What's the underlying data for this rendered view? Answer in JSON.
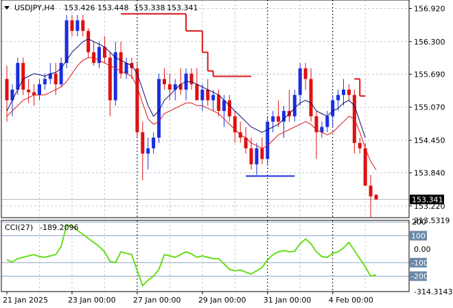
{
  "chart_data": {
    "type": "candlestick",
    "symbol_caption": "USDJPY,H4",
    "ohlc_caption": {
      "open": "153.426",
      "high": "153.448",
      "low": "153.338",
      "close": "153.341"
    },
    "price_ticks": [
      "156.920",
      "156.300",
      "155.690",
      "155.070",
      "154.450",
      "153.840",
      "153.220"
    ],
    "price_ylim": [
      153.0,
      157.08
    ],
    "current_price": 153.341,
    "current_price_label": "153.341",
    "x_labels": [
      {
        "label": "21 Jan 2025",
        "index": 0
      },
      {
        "label": "23 Jan 00:00",
        "index": 12
      },
      {
        "label": "27 Jan 00:00",
        "index": 24
      },
      {
        "label": "29 Jan 00:00",
        "index": 36
      },
      {
        "label": "31 Jan 00:00",
        "index": 48
      },
      {
        "label": "4 Feb 00:00",
        "index": 60
      }
    ],
    "session_separators": [
      24,
      48,
      60
    ],
    "colors": {
      "up": "#1a2ee0",
      "down": "#e01010",
      "ma_fast": "#0a0a6e",
      "ma_slow": "#d81616",
      "stop": "#d81616",
      "level": "#1a2ee0",
      "cci": "#66dd1a",
      "grid": "#bfc9d6"
    },
    "candles": [
      [
        155.6,
        155.85,
        154.8,
        155.2
      ],
      [
        155.2,
        155.5,
        154.9,
        155.4
      ],
      [
        155.4,
        156.0,
        155.3,
        155.9
      ],
      [
        155.9,
        156.0,
        155.3,
        155.4
      ],
      [
        155.4,
        155.6,
        155.15,
        155.35
      ],
      [
        155.35,
        155.5,
        155.1,
        155.3
      ],
      [
        155.3,
        155.6,
        155.2,
        155.5
      ],
      [
        155.5,
        155.7,
        155.4,
        155.6
      ],
      [
        155.6,
        155.9,
        155.5,
        155.7
      ],
      [
        155.7,
        155.9,
        155.3,
        155.5
      ],
      [
        155.5,
        156.0,
        155.45,
        155.9
      ],
      [
        155.9,
        156.8,
        155.8,
        156.7
      ],
      [
        156.7,
        156.8,
        156.4,
        156.5
      ],
      [
        156.5,
        156.8,
        156.4,
        156.7
      ],
      [
        156.7,
        156.8,
        156.4,
        156.5
      ],
      [
        156.5,
        156.55,
        156.0,
        156.1
      ],
      [
        156.1,
        156.3,
        155.85,
        155.9
      ],
      [
        155.9,
        156.3,
        155.8,
        156.2
      ],
      [
        156.2,
        156.4,
        155.9,
        156.0
      ],
      [
        156.0,
        156.1,
        154.9,
        155.2
      ],
      [
        155.2,
        156.3,
        155.1,
        156.1
      ],
      [
        156.1,
        156.3,
        155.6,
        155.7
      ],
      [
        155.7,
        156.0,
        155.6,
        155.9
      ],
      [
        155.9,
        156.0,
        155.6,
        155.8
      ],
      [
        155.8,
        155.9,
        154.5,
        154.6
      ],
      [
        154.6,
        154.8,
        153.7,
        154.2
      ],
      [
        154.2,
        154.5,
        153.9,
        154.3
      ],
      [
        154.3,
        154.6,
        154.2,
        154.5
      ],
      [
        154.5,
        155.7,
        154.4,
        155.6
      ],
      [
        155.6,
        155.8,
        155.4,
        155.5
      ],
      [
        155.5,
        155.7,
        155.2,
        155.4
      ],
      [
        155.4,
        155.6,
        155.2,
        155.5
      ],
      [
        155.5,
        155.8,
        155.3,
        155.4
      ],
      [
        155.4,
        155.8,
        155.2,
        155.7
      ],
      [
        155.7,
        155.8,
        155.4,
        155.5
      ],
      [
        155.5,
        155.8,
        155.2,
        155.2
      ],
      [
        155.2,
        155.5,
        155.0,
        155.4
      ],
      [
        155.4,
        155.6,
        155.1,
        155.2
      ],
      [
        155.2,
        155.4,
        155.0,
        155.3
      ],
      [
        155.3,
        155.4,
        154.9,
        155.0
      ],
      [
        155.0,
        155.3,
        154.7,
        155.2
      ],
      [
        155.2,
        155.3,
        154.8,
        154.9
      ],
      [
        154.9,
        155.0,
        154.4,
        154.6
      ],
      [
        154.6,
        154.8,
        154.4,
        154.5
      ],
      [
        154.5,
        154.7,
        154.2,
        154.3
      ],
      [
        154.3,
        154.5,
        153.9,
        154.0
      ],
      [
        154.0,
        154.4,
        153.8,
        154.3
      ],
      [
        154.3,
        154.5,
        154.0,
        154.1
      ],
      [
        154.1,
        154.9,
        154.0,
        154.8
      ],
      [
        154.8,
        155.0,
        154.6,
        154.9
      ],
      [
        154.9,
        155.2,
        154.7,
        154.8
      ],
      [
        154.8,
        155.1,
        154.5,
        155.0
      ],
      [
        155.0,
        155.4,
        154.8,
        154.9
      ],
      [
        154.9,
        155.4,
        154.8,
        155.3
      ],
      [
        155.3,
        155.9,
        155.1,
        155.8
      ],
      [
        155.8,
        155.9,
        155.4,
        155.6
      ],
      [
        155.6,
        155.8,
        154.8,
        154.9
      ],
      [
        154.9,
        155.0,
        154.1,
        154.6
      ],
      [
        154.6,
        154.8,
        154.5,
        154.7
      ],
      [
        154.7,
        155.0,
        154.6,
        154.9
      ],
      [
        154.9,
        155.3,
        154.7,
        155.2
      ],
      [
        155.2,
        155.4,
        155.0,
        155.3
      ],
      [
        155.3,
        155.6,
        155.1,
        155.4
      ],
      [
        155.4,
        155.5,
        155.2,
        155.3
      ],
      [
        155.3,
        155.4,
        154.2,
        154.4
      ],
      [
        154.4,
        154.5,
        154.2,
        154.3
      ],
      [
        154.3,
        154.4,
        153.6,
        153.6
      ],
      [
        153.6,
        153.8,
        153.0,
        153.4
      ],
      [
        153.426,
        153.448,
        153.338,
        153.341
      ]
    ],
    "ma_fast": [
      155.0,
      155.2,
      155.4,
      155.6,
      155.65,
      155.7,
      155.68,
      155.65,
      155.7,
      155.72,
      155.8,
      155.95,
      156.1,
      156.2,
      156.3,
      156.35,
      156.3,
      156.25,
      156.2,
      156.1,
      156.0,
      155.95,
      155.9,
      155.85,
      155.7,
      155.4,
      155.1,
      154.9,
      155.0,
      155.2,
      155.3,
      155.4,
      155.5,
      155.55,
      155.55,
      155.5,
      155.45,
      155.4,
      155.35,
      155.3,
      155.2,
      155.1,
      155.0,
      154.9,
      154.8,
      154.7,
      154.65,
      154.6,
      154.65,
      154.7,
      154.75,
      154.85,
      154.95,
      155.05,
      155.15,
      155.2,
      155.15,
      155.0,
      154.95,
      154.9,
      155.0,
      155.05,
      155.15,
      155.2,
      155.1,
      154.8,
      154.5,
      null,
      null
    ],
    "ma_slow": [
      154.9,
      155.0,
      155.1,
      155.2,
      155.25,
      155.3,
      155.3,
      155.3,
      155.35,
      155.4,
      155.45,
      155.55,
      155.7,
      155.85,
      155.95,
      156.0,
      156.0,
      155.95,
      155.9,
      155.85,
      155.8,
      155.75,
      155.7,
      155.65,
      155.45,
      155.15,
      154.85,
      154.75,
      154.8,
      154.95,
      155.0,
      155.05,
      155.1,
      155.15,
      155.15,
      155.1,
      155.1,
      155.05,
      155.0,
      154.95,
      154.85,
      154.75,
      154.65,
      154.55,
      154.5,
      154.4,
      154.35,
      154.3,
      154.35,
      154.45,
      154.55,
      154.6,
      154.65,
      154.7,
      154.75,
      154.8,
      154.75,
      154.65,
      154.6,
      154.55,
      154.6,
      154.7,
      154.8,
      154.9,
      154.85,
      154.6,
      154.3,
      154.05,
      153.9
    ],
    "stop_segments": [
      {
        "from": 21,
        "to": 33,
        "value": 156.82
      },
      {
        "from": 33,
        "to": 36,
        "value": 156.5
      },
      {
        "from": 36,
        "to": 37,
        "value": 156.1
      },
      {
        "from": 37,
        "to": 38,
        "value": 155.75
      },
      {
        "from": 38,
        "to": 45,
        "value": 155.65
      },
      {
        "from": 64,
        "to": 65,
        "value": 155.6
      },
      {
        "from": 65,
        "to": 66,
        "value": 155.28
      }
    ],
    "level_line": {
      "from": 44,
      "to": 53,
      "value": 153.78
    },
    "cci_caption": {
      "name": "CCI(27)",
      "value": "-189.2096"
    },
    "cci_ticks": [
      {
        "label": "213.5319",
        "value": 213.5319,
        "boxed": false
      },
      {
        "label": "100",
        "value": 100,
        "boxed": true
      },
      {
        "label": "0.00",
        "value": 0,
        "boxed": false
      },
      {
        "label": "-100",
        "value": -100,
        "boxed": true
      },
      {
        "label": "-200",
        "value": -200,
        "boxed": true
      },
      {
        "label": "-314.3143",
        "value": -314.3143,
        "boxed": false
      }
    ],
    "cci_overflow_label": "200",
    "cci_levels": [
      200,
      100,
      -100,
      -200
    ],
    "cci_ylim": [
      -314.3143,
      213.5319
    ],
    "cci_values": [
      -80,
      -95,
      -70,
      -60,
      -50,
      -40,
      -55,
      -60,
      -50,
      -40,
      20,
      180,
      170,
      140,
      110,
      80,
      50,
      20,
      -20,
      -90,
      -100,
      -20,
      -30,
      -40,
      -160,
      -270,
      -230,
      -200,
      -150,
      -40,
      -50,
      -60,
      -40,
      -20,
      -35,
      -60,
      -50,
      -60,
      -70,
      -70,
      -110,
      -150,
      -160,
      -155,
      -170,
      -185,
      -160,
      -135,
      -80,
      -40,
      -20,
      -10,
      -20,
      -15,
      40,
      75,
      40,
      -20,
      -55,
      -60,
      -30,
      -20,
      10,
      50,
      -10,
      -70,
      -130,
      -200,
      -190
    ]
  }
}
